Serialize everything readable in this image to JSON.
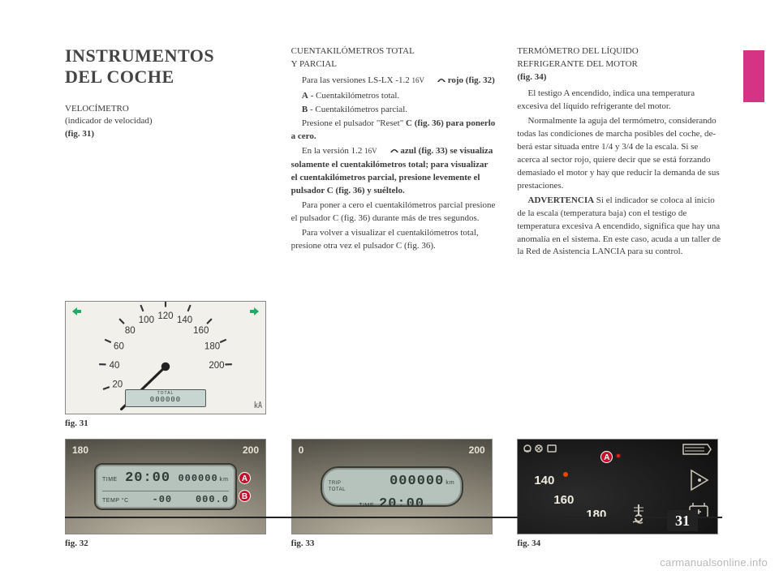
{
  "page_number": "31",
  "watermark": "carmanualsonline.info",
  "accent_color": "#d63384",
  "col1": {
    "h1_line1": "INSTRUMENTOS",
    "h1_line2": "DEL COCHE",
    "sub_title": "VELOCÍMETRO",
    "sub_line2": "(indicador de velocidad)",
    "sub_fig": "(fig. 31)",
    "fig31": {
      "caption": "fig. 31",
      "ticks": [
        {
          "label": "20",
          "angle": 200
        },
        {
          "label": "40",
          "angle": 178
        },
        {
          "label": "60",
          "angle": 156
        },
        {
          "label": "80",
          "angle": 134
        },
        {
          "label": "100",
          "angle": 112
        },
        {
          "label": "120",
          "angle": 90
        },
        {
          "label": "140",
          "angle": 68
        },
        {
          "label": "160",
          "angle": 46
        },
        {
          "label": "180",
          "angle": 24
        },
        {
          "label": "200",
          "angle": 2
        }
      ],
      "needle_angle": 224,
      "lcd_top_label": "TOTAL",
      "lcd_top_value": "000000",
      "lcd_bottom": "000.0"
    },
    "fig32": {
      "caption": "fig. 32",
      "left_num": "180",
      "right_num": "200",
      "time_label": "TIME",
      "time_value": "20:00",
      "total_value": "000000",
      "total_unit": "km",
      "temp_label": "TEMP °C",
      "temp_value": "-00",
      "trip_value": "000.0",
      "badge_a": "A",
      "badge_b": "B"
    }
  },
  "col2": {
    "heading_line1": "CUENTAKILÓMETROS TOTAL",
    "heading_line2": "Y PARCIAL",
    "p1a": "Para las versiones LS-LX -1.2 ",
    "p1b": "16V",
    "p1c": " rojo ",
    "p1d": "(fig. 32)",
    "p2_prefix": "A",
    "p2_text": " - Cuentakilómetros total.",
    "p3_prefix": "B",
    "p3_text": " - Cuentakilómetros parcial.",
    "p4a": "Presione el pulsador \"Reset\" ",
    "p4b": "C",
    "p4c": " (fig. 36) para ponerlo a cero.",
    "p5a": "En la versión 1.2 ",
    "p5b": "16V",
    "p5c": " azul ",
    "p5d": "(fig. 33) se visualiza solamente el cuenta­kilómetros total; para visualizar el cuentakilómetros parcial, presione le­vemente el pulsador C (fig. 36) y suél­telo.",
    "p6": "Para poner a cero el cuentakilómetros parcial presione el pulsador C (fig. 36) durante más de tres segundos.",
    "p7": "Para volver a visualizar el cuentaki­lómetros total, presione otra vez el pulsador C (fig. 36).",
    "fig33": {
      "caption": "fig. 33",
      "left_num": "0",
      "right_num": "200",
      "trip_label": "TRIP",
      "total_label": "TOTAL",
      "total_value": "000000",
      "total_unit": "km",
      "time_label": "TIME",
      "time_value": "20:00"
    }
  },
  "col3": {
    "heading_line1": "TERMÓMETRO DEL LÍQUIDO",
    "heading_line2": "REFRIGERANTE DEL MOTOR",
    "heading_fig": "(fig. 34)",
    "p1": "El testigo A encendido, indica una temperatura excesiva del líquido re­frigerante del motor.",
    "p2": "Normalmente la aguja del termóme­tro, considerando todas las condicio­nes de marcha posibles del coche, de­berá estar situada entre 1/4 y 3/4 de la escala. Si se acerca al sector rojo, quiere decir que se está forzando de­masiado el motor y hay que reducir la demanda de sus prestaciones.",
    "p3_strong": "ADVERTENCIA",
    "p3_rest": " Si el indicador se coloca al inicio de la escala (tempera­tura baja) con el testigo de temperatura excesiva A encendido, significa que hay una anomalía en el sistema. En este caso, acuda a un taller de la Red de Asistencia LANCIA para su control.",
    "fig34": {
      "caption": "fig. 34",
      "nums": [
        "140",
        "160",
        "180"
      ],
      "badge": "A"
    }
  }
}
